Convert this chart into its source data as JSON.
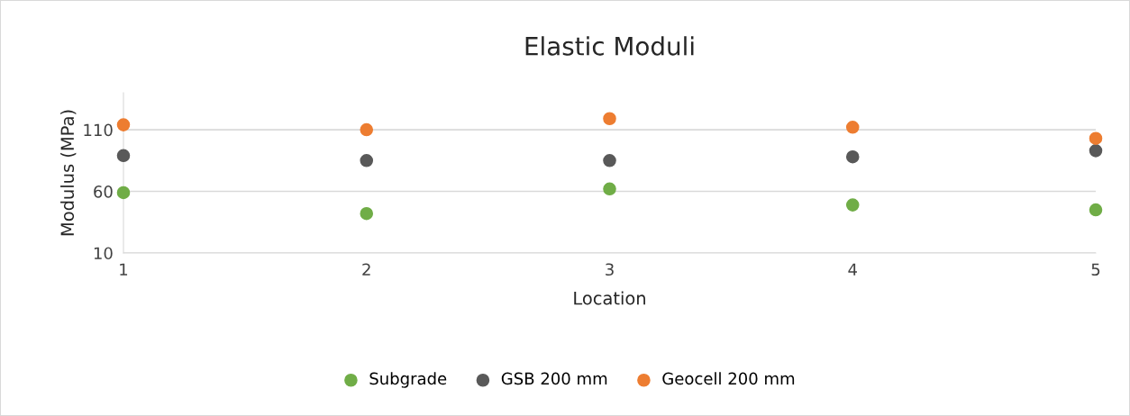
{
  "chart_data": {
    "type": "scatter",
    "title": "Elastic Moduli",
    "xlabel": "Location",
    "ylabel": "Modulus (MPa)",
    "x": [
      1,
      2,
      3,
      4,
      5
    ],
    "series": [
      {
        "name": "Subgrade",
        "color": "#70ad47",
        "values": [
          59,
          42,
          62,
          49,
          45
        ]
      },
      {
        "name": "GSB 200 mm",
        "color": "#595959",
        "values": [
          89,
          85,
          85,
          88,
          93
        ]
      },
      {
        "name": "Geocell 200 mm",
        "color": "#ed7d31",
        "values": [
          114,
          110,
          119,
          112,
          103
        ]
      }
    ],
    "xlim": [
      1,
      5
    ],
    "xticks": [
      1,
      2,
      3,
      4,
      5
    ],
    "ylim": [
      10,
      140
    ],
    "yticks": [
      10,
      60,
      110
    ],
    "grid": "y",
    "legend": "bottom",
    "marker": "circle"
  }
}
